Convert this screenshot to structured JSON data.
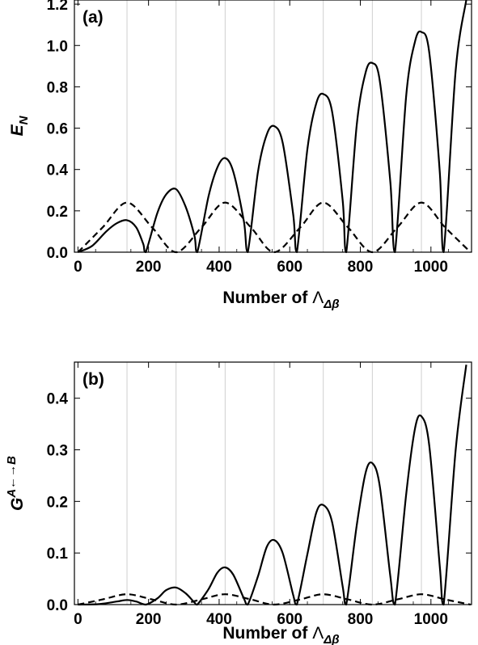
{
  "chart_data": [
    {
      "type": "line",
      "panel_label": "(a)",
      "xlabel_main": "Number of ",
      "xlabel_symbol": "Λ",
      "xlabel_sub": "Δβ",
      "ylabel_main": "E",
      "ylabel_sub": "N",
      "xlim": [
        -10,
        1115
      ],
      "ylim": [
        0,
        1.22
      ],
      "xticks": [
        0,
        200,
        400,
        600,
        800,
        1000
      ],
      "yticks": [
        0.0,
        0.2,
        0.4,
        0.6,
        0.8,
        1.0,
        1.2
      ],
      "ytick_labels": [
        "0.0",
        "0.2",
        "0.4",
        "0.6",
        "0.8",
        "1.0",
        "1.2"
      ],
      "grid_x": [
        139,
        278,
        417,
        556,
        695,
        834,
        973
      ],
      "series": [
        {
          "style": "solid",
          "x": [
            0,
            40,
            80,
            110,
            139,
            165,
            185,
            192,
            225,
            250,
            278,
            305,
            330,
            338,
            370,
            395,
            417,
            440,
            470,
            481,
            510,
            535,
            556,
            580,
            610,
            620,
            650,
            675,
            695,
            720,
            750,
            760,
            790,
            815,
            834,
            855,
            885,
            898,
            930,
            955,
            973,
            995,
            1025,
            1036,
            1070,
            1100
          ],
          "y": [
            0,
            0.03,
            0.1,
            0.14,
            0.155,
            0.12,
            0.04,
            0,
            0.19,
            0.28,
            0.305,
            0.22,
            0.08,
            0,
            0.27,
            0.41,
            0.455,
            0.39,
            0.15,
            0,
            0.39,
            0.57,
            0.61,
            0.53,
            0.18,
            0,
            0.5,
            0.72,
            0.765,
            0.68,
            0.25,
            0,
            0.62,
            0.87,
            0.915,
            0.83,
            0.34,
            0,
            0.76,
            1.02,
            1.065,
            0.97,
            0.39,
            0,
            0.88,
            1.22
          ]
        },
        {
          "style": "dashed",
          "x": [
            0,
            70,
            139,
            210,
            278,
            350,
            417,
            490,
            556,
            630,
            695,
            765,
            834,
            905,
            973,
            1040,
            1112
          ],
          "y": [
            0,
            0.12,
            0.24,
            0.12,
            0,
            0.12,
            0.24,
            0.12,
            0,
            0.12,
            0.24,
            0.12,
            0,
            0.12,
            0.24,
            0.12,
            0
          ]
        }
      ]
    },
    {
      "type": "line",
      "panel_label": "(b)",
      "xlabel_main": "Number of ",
      "xlabel_symbol": "Λ",
      "xlabel_sub": "Δβ",
      "ylabel_main": "G",
      "ylabel_sup": "A←→B",
      "xlim": [
        -10,
        1115
      ],
      "ylim": [
        0,
        0.47
      ],
      "xticks": [
        0,
        200,
        400,
        600,
        800,
        1000
      ],
      "yticks": [
        0.0,
        0.1,
        0.2,
        0.3,
        0.4
      ],
      "ytick_labels": [
        "0.0",
        "0.1",
        "0.2",
        "0.3",
        "0.4"
      ],
      "grid_x": [
        139,
        278,
        417,
        556,
        695,
        834,
        973
      ],
      "series": [
        {
          "style": "solid",
          "x": [
            0,
            60,
            110,
            139,
            165,
            192,
            225,
            250,
            278,
            305,
            330,
            338,
            370,
            395,
            417,
            440,
            470,
            481,
            510,
            535,
            556,
            580,
            610,
            620,
            650,
            675,
            695,
            720,
            750,
            760,
            790,
            815,
            834,
            855,
            885,
            898,
            930,
            955,
            973,
            995,
            1025,
            1036,
            1070,
            1100
          ],
          "y": [
            0,
            0.001,
            0.006,
            0.009,
            0.006,
            0,
            0.012,
            0.028,
            0.033,
            0.022,
            0.004,
            0,
            0.03,
            0.062,
            0.072,
            0.058,
            0.012,
            0,
            0.055,
            0.112,
            0.125,
            0.1,
            0.018,
            0,
            0.098,
            0.178,
            0.193,
            0.16,
            0.035,
            0,
            0.155,
            0.256,
            0.274,
            0.23,
            0.055,
            0,
            0.215,
            0.342,
            0.365,
            0.31,
            0.075,
            0,
            0.3,
            0.465
          ]
        },
        {
          "style": "dashed",
          "x": [
            0,
            70,
            139,
            210,
            278,
            350,
            417,
            490,
            556,
            630,
            695,
            765,
            834,
            905,
            973,
            1040,
            1112
          ],
          "y": [
            0,
            0.01,
            0.02,
            0.01,
            0,
            0.01,
            0.02,
            0.01,
            0,
            0.01,
            0.02,
            0.01,
            0,
            0.01,
            0.02,
            0.01,
            0
          ]
        }
      ]
    }
  ]
}
